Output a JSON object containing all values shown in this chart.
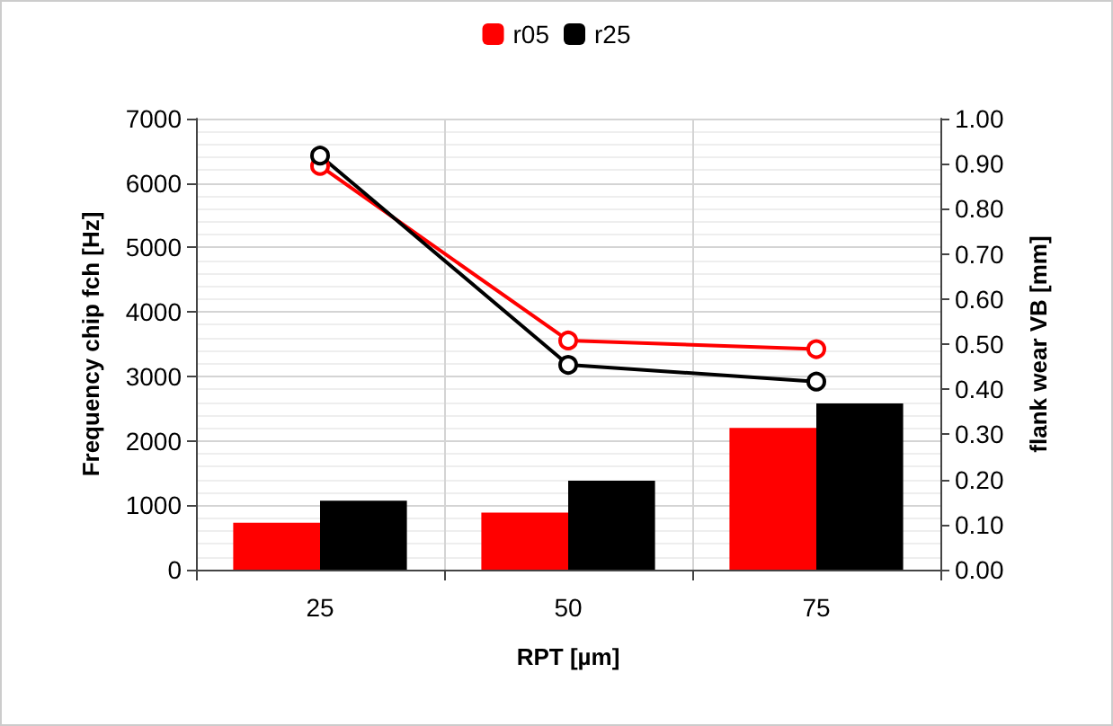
{
  "chart_data": {
    "type": "bar",
    "xlabel": "RPT [µm]",
    "ylabel": "Frequency chip fch [Hz]",
    "y2label": "flank wear VB [mm]",
    "categories": [
      "25",
      "50",
      "75"
    ],
    "series": [
      {
        "name": "r05",
        "color": "#ff0000",
        "values": [
          730,
          885,
          2200
        ]
      },
      {
        "name": "r25",
        "color": "#000000",
        "values": [
          1070,
          1380,
          2580
        ]
      },
      {
        "type": "line",
        "axis": "y2",
        "color": "#ff0000",
        "values": [
          0.895,
          0.508,
          0.489
        ]
      },
      {
        "type": "line",
        "axis": "y2",
        "color": "#000000",
        "values": [
          0.918,
          0.454,
          0.417
        ]
      }
    ],
    "ylim": [
      0,
      7000
    ],
    "yticks": [
      0,
      1000,
      2000,
      3000,
      4000,
      5000,
      6000,
      7000
    ],
    "y2lim": [
      0,
      1
    ],
    "y2ticks": [
      {
        "value": 0,
        "label": "0.00"
      },
      {
        "value": 0.1,
        "label": "0.10"
      },
      {
        "value": 0.2,
        "label": "0.20"
      },
      {
        "value": 0.3,
        "label": "0.30"
      },
      {
        "value": 0.4,
        "label": "0.40"
      },
      {
        "value": 0.5,
        "label": "0.50"
      },
      {
        "value": 0.6,
        "label": "0.60"
      },
      {
        "value": 0.7,
        "label": "0.70"
      },
      {
        "value": 0.8,
        "label": "0.80"
      },
      {
        "value": 0.9,
        "label": "0.90"
      },
      {
        "value": 1,
        "label": "1.00"
      }
    ],
    "grid": true,
    "legend": "top",
    "marker": "circle",
    "line_style": "solid"
  }
}
